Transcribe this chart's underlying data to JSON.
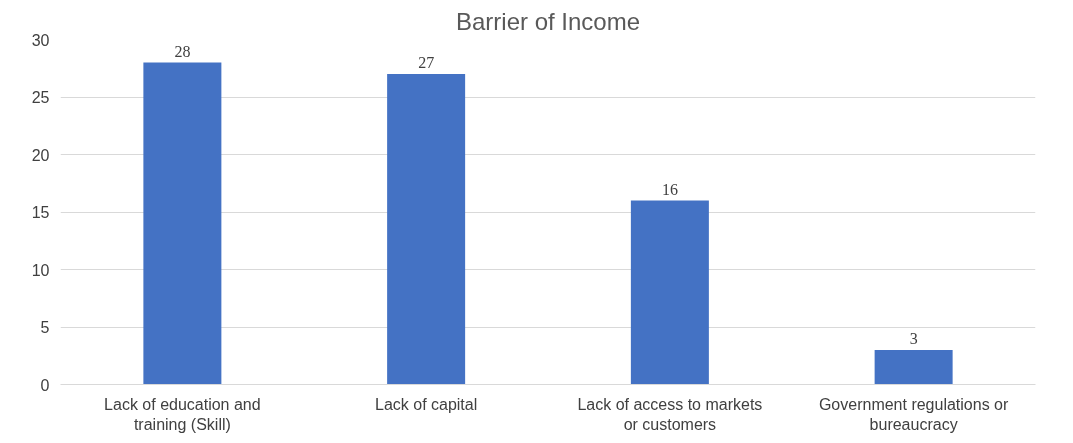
{
  "chart_data": {
    "type": "bar",
    "title": "Barrier of Income",
    "categories": [
      "Lack of education and training (Skill)",
      "Lack of capital",
      "Lack of access to markets or customers",
      "Government regulations or bureaucracy"
    ],
    "values": [
      28,
      27,
      16,
      3
    ],
    "color": "#4472c4",
    "ylim": [
      0,
      30
    ],
    "yticks": [
      0,
      5,
      10,
      15,
      20,
      25,
      30
    ],
    "grid": "y",
    "data_labels": true
  }
}
